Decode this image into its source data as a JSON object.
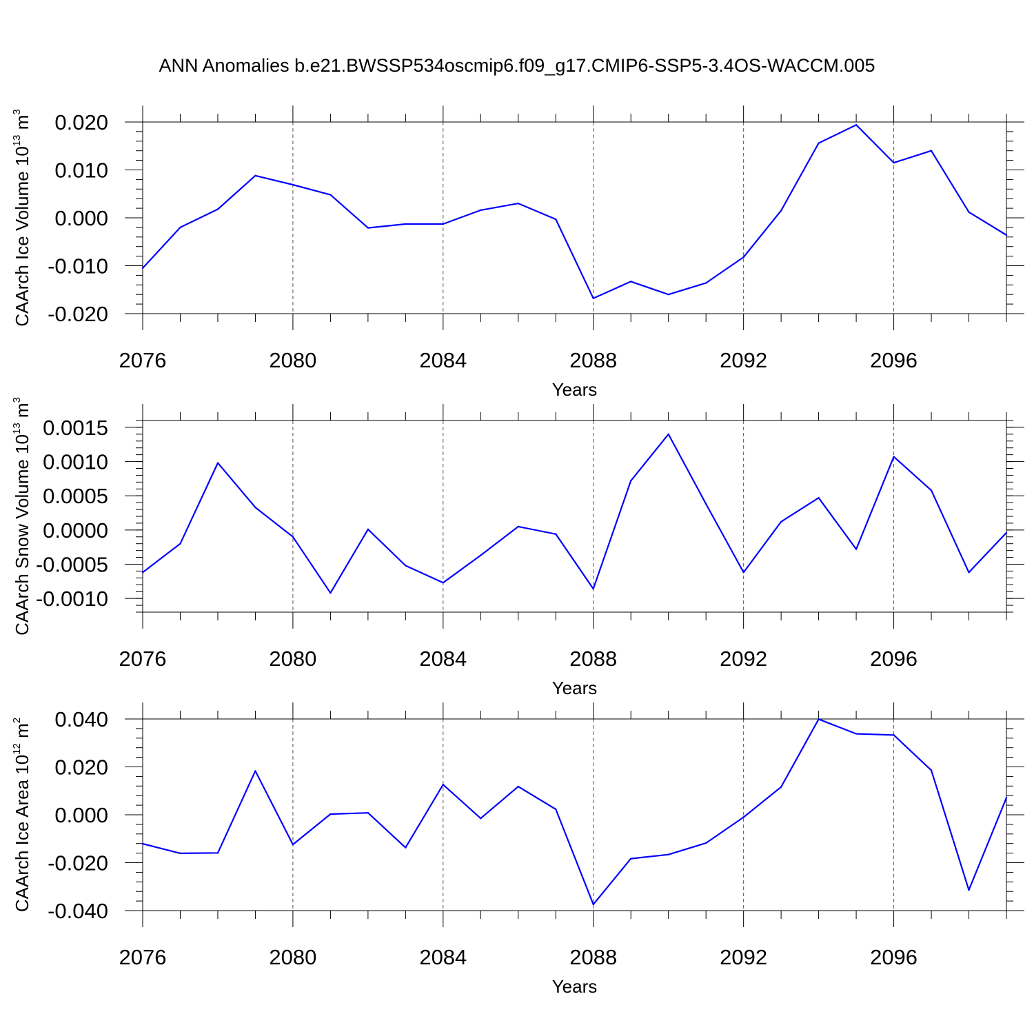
{
  "chart_data": [
    {
      "type": "line",
      "title": "ANN Anomalies b.e21.BWSSP534oscmip6.f09_g17.CMIP6-SSP5-3.4OS-WACCM.005",
      "xlabel": "Years",
      "ylabel": "CAArch Ice Volume 10",
      "ylabel_exp": "13",
      "ylabel_unit": " m",
      "ylabel_unit_exp": "3",
      "xlim": [
        2076,
        2099
      ],
      "ylim": [
        -0.02,
        0.02
      ],
      "x_ticks": [
        "2076",
        "2080",
        "2084",
        "2088",
        "2092",
        "2096"
      ],
      "y_ticks": [
        "0.020",
        "0.010",
        "0.000",
        "-0.010",
        "-0.020"
      ],
      "x": [
        2076,
        2077,
        2078,
        2079,
        2080,
        2081,
        2082,
        2083,
        2084,
        2085,
        2086,
        2087,
        2088,
        2089,
        2090,
        2091,
        2092,
        2093,
        2094,
        2095,
        2096,
        2097,
        2098,
        2099
      ],
      "series": [
        {
          "name": "CAArch Ice Volume",
          "color": "#0000ff",
          "values": [
            -0.0105,
            -0.002,
            0.0018,
            0.0088,
            0.0069,
            0.0048,
            -0.0021,
            -0.0013,
            -0.0013,
            0.0016,
            0.003,
            -0.0003,
            -0.0168,
            -0.0133,
            -0.016,
            -0.0136,
            -0.0082,
            0.0015,
            0.0156,
            0.0194,
            0.0115,
            0.014,
            0.0012,
            -0.0036
          ]
        }
      ]
    },
    {
      "type": "line",
      "xlabel": "Years",
      "ylabel": "CAArch Snow Volume 10",
      "ylabel_exp": "13",
      "ylabel_unit": " m",
      "ylabel_unit_exp": "3",
      "xlim": [
        2076,
        2099
      ],
      "ylim": [
        -0.0012,
        0.0016
      ],
      "x_ticks": [
        "2076",
        "2080",
        "2084",
        "2088",
        "2092",
        "2096"
      ],
      "y_ticks": [
        "0.0015",
        "0.0010",
        "0.0005",
        "0.0000",
        "-0.0005",
        "-0.0010"
      ],
      "x": [
        2076,
        2077,
        2078,
        2079,
        2080,
        2081,
        2082,
        2083,
        2084,
        2085,
        2086,
        2087,
        2088,
        2089,
        2090,
        2091,
        2092,
        2093,
        2094,
        2095,
        2096,
        2097,
        2098,
        2099
      ],
      "series": [
        {
          "name": "CAArch Snow Volume",
          "color": "#0000ff",
          "values": [
            -0.00062,
            -0.0002,
            0.00098,
            0.00033,
            -0.0001,
            -0.00092,
            1e-05,
            -0.00052,
            -0.00077,
            -0.00037,
            5e-05,
            -6e-05,
            -0.00086,
            0.00072,
            0.0014,
            0.00038,
            -0.00062,
            0.00012,
            0.00047,
            -0.00028,
            0.00107,
            0.00058,
            -0.00062,
            -4e-05
          ]
        }
      ]
    },
    {
      "type": "line",
      "xlabel": "Years",
      "ylabel": "CAArch Ice Area 10",
      "ylabel_exp": "12",
      "ylabel_unit": " m",
      "ylabel_unit_exp": "2",
      "xlim": [
        2076,
        2099
      ],
      "ylim": [
        -0.04,
        0.04
      ],
      "x_ticks": [
        "2076",
        "2080",
        "2084",
        "2088",
        "2092",
        "2096"
      ],
      "y_ticks": [
        "0.040",
        "0.020",
        "0.000",
        "-0.020",
        "-0.040"
      ],
      "x": [
        2076,
        2077,
        2078,
        2079,
        2080,
        2081,
        2082,
        2083,
        2084,
        2085,
        2086,
        2087,
        2088,
        2089,
        2090,
        2091,
        2092,
        2093,
        2094,
        2095,
        2096,
        2097,
        2098,
        2099
      ],
      "series": [
        {
          "name": "CAArch Ice Area",
          "color": "#0000ff",
          "values": [
            -0.0121,
            -0.0161,
            -0.0159,
            0.0183,
            -0.0124,
            0.0003,
            0.0008,
            -0.0137,
            0.0126,
            -0.0015,
            0.0118,
            0.0023,
            -0.0374,
            -0.0183,
            -0.0166,
            -0.0118,
            -0.001,
            0.0116,
            0.0399,
            0.0338,
            0.0333,
            0.0186,
            -0.0314,
            0.0071
          ]
        }
      ]
    }
  ]
}
